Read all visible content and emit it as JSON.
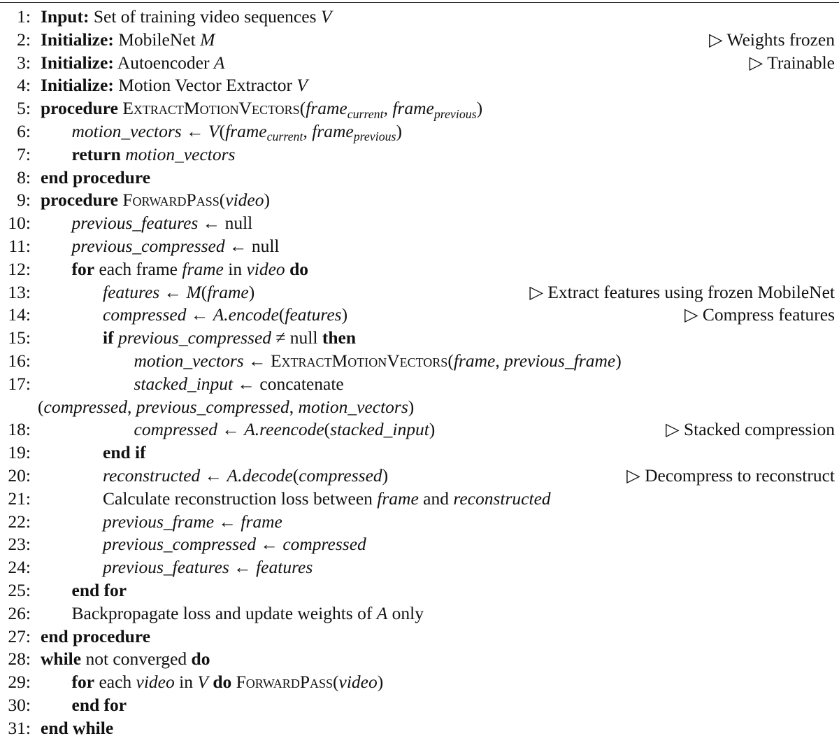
{
  "document": {
    "type": "algorithm",
    "lines": [
      {
        "n": "1:",
        "html": "<span class='kw'>Input:</span> Set of training video sequences <span class='m'>V</span>",
        "comment": ""
      },
      {
        "n": "2:",
        "html": "<span class='kw'>Initialize:</span> MobileNet <span class='m'>M</span>",
        "comment": "▷ Weights frozen"
      },
      {
        "n": "3:",
        "html": "<span class='kw'>Initialize:</span> Autoencoder <span class='m'>A</span>",
        "comment": "▷ Trainable"
      },
      {
        "n": "4:",
        "html": "<span class='kw'>Initialize:</span> Motion Vector Extractor <span class='m'>V</span>",
        "comment": ""
      },
      {
        "n": "5:",
        "html": "<span class='kw'>procedure</span> <span class='sc'>ExtractMotionVectors</span>(<span class='m'>frame</span><span class='sub'>current</span>, <span class='m'>frame</span><span class='sub'>previous</span>)",
        "comment": ""
      },
      {
        "n": "6:",
        "html": "<span class='m'>motion_vectors</span> ← <span class='m'>V</span>(<span class='m'>frame</span><span class='sub'>current</span>, <span class='m'>frame</span><span class='sub'>previous</span>)",
        "comment": "",
        "indent": 1
      },
      {
        "n": "7:",
        "html": "<span class='kw'>return</span> <span class='m'>motion_vectors</span>",
        "comment": "",
        "indent": 1
      },
      {
        "n": "8:",
        "html": "<span class='kw'>end procedure</span>",
        "comment": ""
      },
      {
        "n": "9:",
        "html": "<span class='kw'>procedure</span> <span class='sc'>ForwardPass</span>(<span class='m'>video</span>)",
        "comment": ""
      },
      {
        "n": "10:",
        "html": "<span class='m'>previous_features</span> ← null",
        "comment": "",
        "indent": 1
      },
      {
        "n": "11:",
        "html": "<span class='m'>previous_compressed</span> ← null",
        "comment": "",
        "indent": 1
      },
      {
        "n": "12:",
        "html": "<span class='kw'>for</span> each frame <span class='m'>frame</span> in <span class='m'>video</span> <span class='kw'>do</span>",
        "comment": "",
        "indent": 1
      },
      {
        "n": "13:",
        "html": "<span class='m'>features</span> ← <span class='m'>M</span>(<span class='m'>frame</span>)",
        "comment": "▷ Extract features using frozen MobileNet",
        "indent": 2
      },
      {
        "n": "14:",
        "html": "<span class='m'>compressed</span> ← <span class='m'>A.encode</span>(<span class='m'>features</span>)",
        "comment": "▷ Compress features",
        "indent": 2
      },
      {
        "n": "15:",
        "html": "<span class='kw'>if</span> <span class='m'>previous_compressed</span> ≠ null <span class='kw'>then</span>",
        "comment": "",
        "indent": 2
      },
      {
        "n": "16:",
        "html": "<span class='m'>motion_vectors</span> ← <span class='sc'>ExtractMotionVectors</span>(<span class='m'>frame</span>, <span class='m'>previous_frame</span>)",
        "comment": "",
        "indent": 3
      },
      {
        "n": "17:",
        "html": "<span class='m'>stacked_input</span> ← concatenate",
        "comment": "",
        "indent": 3
      },
      {
        "n": "",
        "html": "(<span class='m'>compressed</span>, <span class='m'>previous_compressed</span>, <span class='m'>motion_vectors</span>)",
        "comment": "",
        "indent": 0
      },
      {
        "n": "18:",
        "html": "<span class='m'>compressed</span> ← <span class='m'>A.reencode</span>(<span class='m'>stacked_input</span>)",
        "comment": "▷ Stacked compression",
        "indent": 3
      },
      {
        "n": "19:",
        "html": "<span class='kw'>end if</span>",
        "comment": "",
        "indent": 2
      },
      {
        "n": "20:",
        "html": "<span class='m'>reconstructed</span> ← <span class='m'>A.decode</span>(<span class='m'>compressed</span>)",
        "comment": "▷ Decompress to reconstruct",
        "indent": 2
      },
      {
        "n": "21:",
        "html": "Calculate reconstruction loss between <span class='m'>frame</span> and <span class='m'>reconstructed</span>",
        "comment": "",
        "indent": 2
      },
      {
        "n": "22:",
        "html": "<span class='m'>previous_frame</span> ← <span class='m'>frame</span>",
        "comment": "",
        "indent": 2
      },
      {
        "n": "23:",
        "html": "<span class='m'>previous_compressed</span> ← <span class='m'>compressed</span>",
        "comment": "",
        "indent": 2
      },
      {
        "n": "24:",
        "html": "<span class='m'>previous_features</span> ← <span class='m'>features</span>",
        "comment": "",
        "indent": 2
      },
      {
        "n": "25:",
        "html": "<span class='kw'>end for</span>",
        "comment": "",
        "indent": 1
      },
      {
        "n": "26:",
        "html": "Backpropagate loss and update weights of <span class='m'>A</span> only",
        "comment": "",
        "indent": 1
      },
      {
        "n": "27:",
        "html": "<span class='kw'>end procedure</span>",
        "comment": ""
      },
      {
        "n": "28:",
        "html": "<span class='kw'>while</span> not converged <span class='kw'>do</span>",
        "comment": ""
      },
      {
        "n": "29:",
        "html": "<span class='kw'>for</span> each <span class='m'>video</span> in <span class='m'>V</span> <span class='kw'>do</span> <span class='sc'>ForwardPass</span>(<span class='m'>video</span>)",
        "comment": "",
        "indent": 1
      },
      {
        "n": "30:",
        "html": "<span class='kw'>end for</span>",
        "comment": "",
        "indent": 1
      },
      {
        "n": "31:",
        "html": "<span class='kw'>end while</span>",
        "comment": ""
      }
    ]
  }
}
